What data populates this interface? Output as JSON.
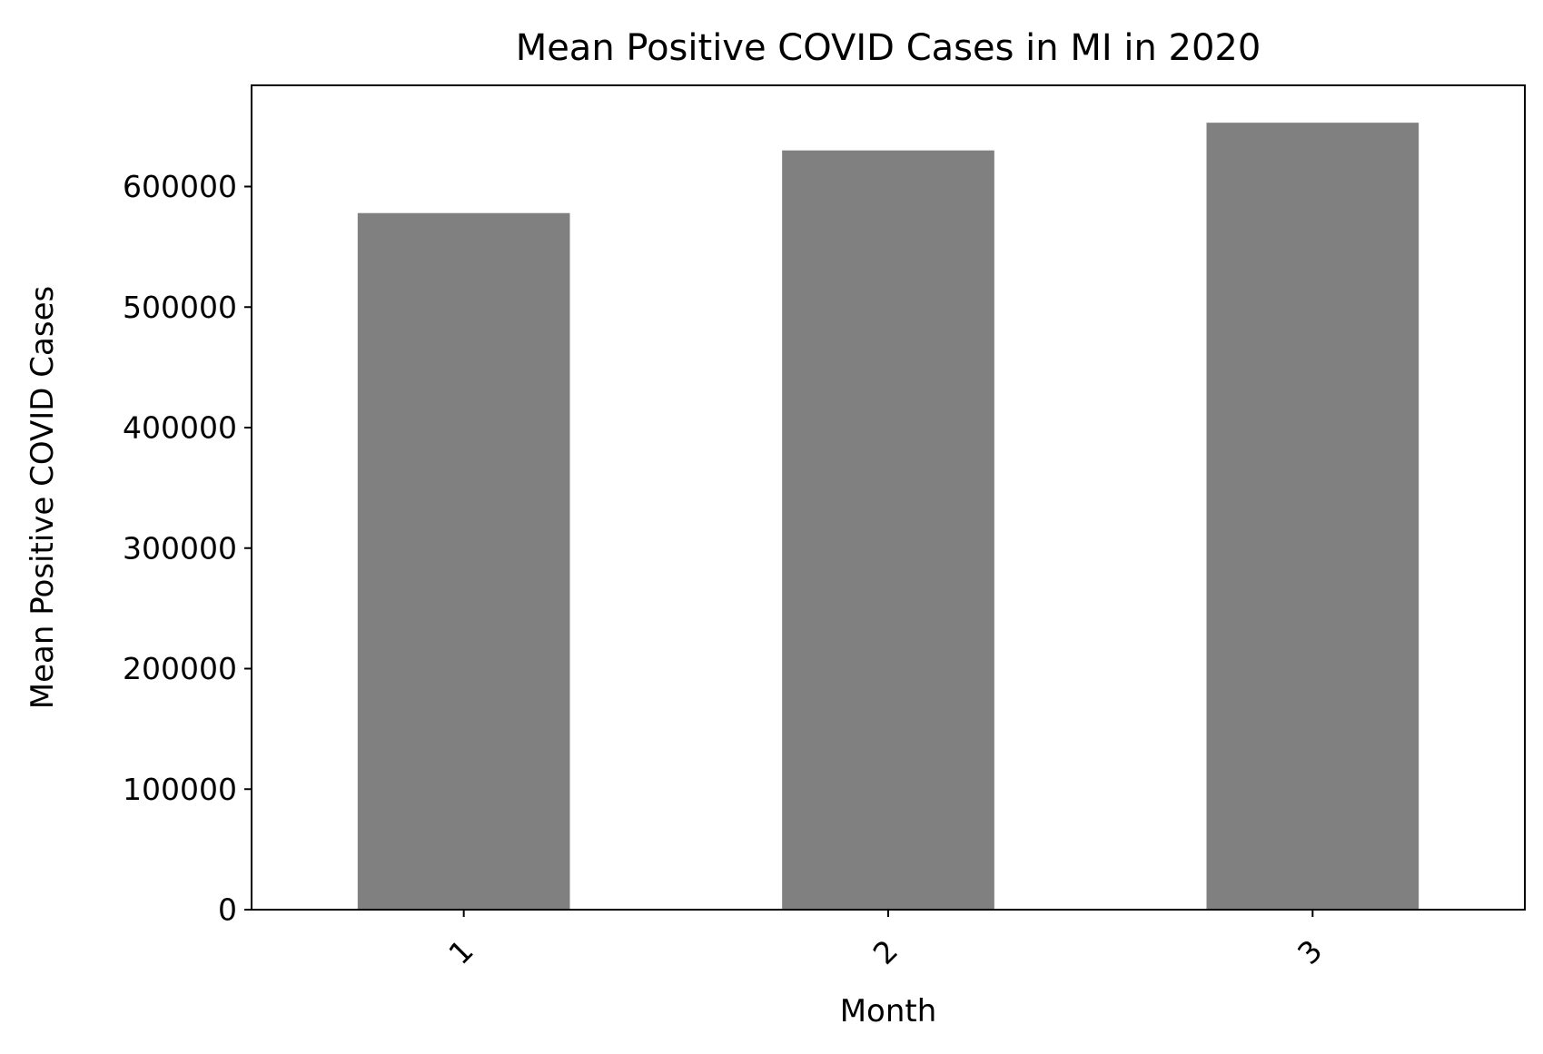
{
  "chart_data": {
    "type": "bar",
    "title": "Mean Positive COVID Cases in MI in 2020",
    "xlabel": "Month",
    "ylabel": "Mean Positive COVID Cases",
    "categories": [
      "1",
      "2",
      "3"
    ],
    "values": [
      578000,
      630000,
      653000
    ],
    "ylim": [
      0,
      684000
    ],
    "yticks": [
      0,
      100000,
      200000,
      300000,
      400000,
      500000,
      600000
    ],
    "ytick_labels": [
      "0",
      "100000",
      "200000",
      "300000",
      "400000",
      "500000",
      "600000"
    ],
    "xtick_rotation_deg": 45,
    "bar_color": "#808080",
    "grid": false,
    "legend": "none"
  }
}
